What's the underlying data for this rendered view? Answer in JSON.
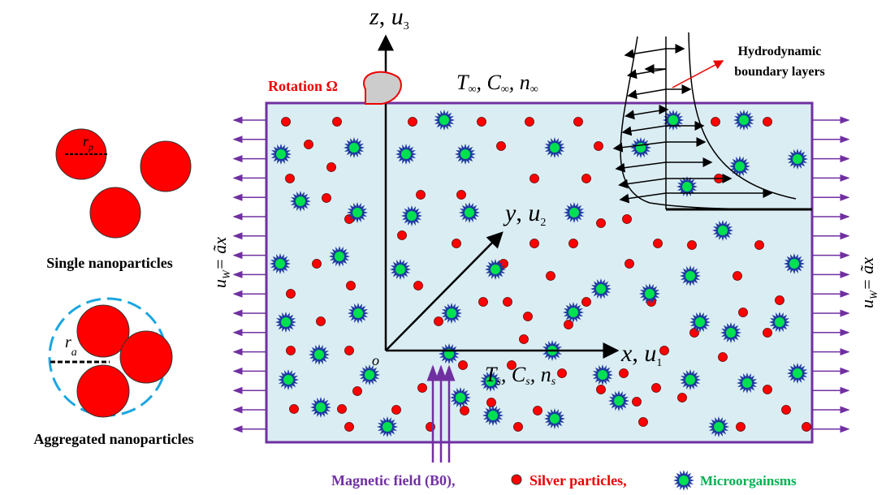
{
  "axes": {
    "z": {
      "name": "z",
      "var": "u",
      "sub": "3"
    },
    "y": {
      "name": "y",
      "var": "u",
      "sub": "2"
    },
    "x": {
      "name": "x",
      "var": "u",
      "sub": "1"
    },
    "origin": "o"
  },
  "rotation": "Rotation Ω",
  "top_conditions": {
    "T": "T",
    "C": "C",
    "n": "n",
    "sub": "∞"
  },
  "surface_conditions": {
    "T": "T",
    "C": "C",
    "n": "n",
    "sub": "s"
  },
  "boundary_label": [
    "Hydrodynamic",
    "boundary layers"
  ],
  "single": {
    "label": "Single nanoparticles",
    "radius": "r",
    "radius_sub": "p"
  },
  "aggregated": {
    "label": "Aggregated nanoparticles",
    "radius": "r",
    "radius_sub": "a"
  },
  "wall_velocity": {
    "u": "u",
    "sub": "W",
    "rhs": "= ãx"
  },
  "legend": {
    "magnetic": "Magnetic field (B0),",
    "silver": "Silver particles,",
    "micro": "Microorgainsms"
  }
}
